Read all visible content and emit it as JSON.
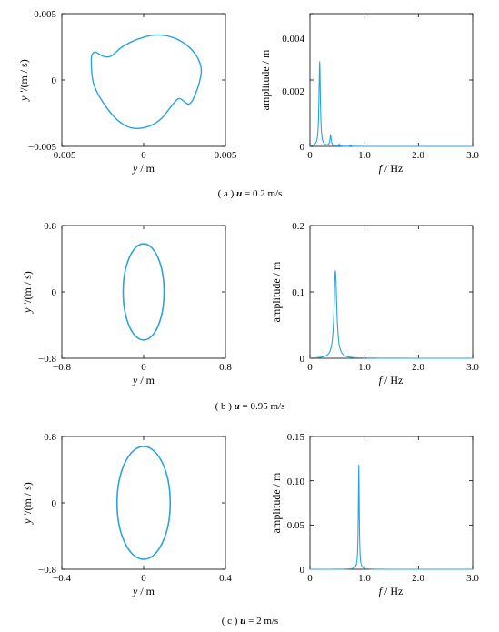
{
  "chart_data": [
    {
      "id": "a-phase",
      "type": "line",
      "xlabel": {
        "var": "y",
        "unit": "/ m"
      },
      "ylabel": {
        "var": "y ′",
        "unit": "/(m / s)"
      },
      "xlim": [
        -0.005,
        0.005
      ],
      "ylim": [
        -0.005,
        0.005
      ],
      "x_ticks": [
        "−0.005",
        "0",
        "0.005"
      ],
      "y_ticks": [
        "0.005",
        "0",
        "−0.005"
      ],
      "series": [
        {
          "x": [
            -0.0013,
            -0.0003,
            0.0008,
            0.002,
            0.003,
            0.0035,
            0.0034,
            0.003,
            0.0027,
            0.0022,
            0.0018,
            0.001,
            0.0,
            -0.001,
            -0.002,
            -0.003,
            -0.0032,
            -0.003,
            -0.0025,
            -0.002,
            -0.0013
          ],
          "y": [
            0.0025,
            0.0031,
            0.0034,
            0.0031,
            0.0022,
            0.001,
            -0.0002,
            -0.0015,
            -0.0018,
            -0.0014,
            -0.0018,
            -0.003,
            -0.0036,
            -0.0035,
            -0.0025,
            -0.0005,
            0.0015,
            0.0021,
            0.0018,
            0.0018,
            0.0025
          ]
        }
      ]
    },
    {
      "id": "a-spectrum",
      "type": "line",
      "xlabel": {
        "var": "f",
        "unit": "/ Hz"
      },
      "ylabel": {
        "var": "",
        "unit": "amplitude / m"
      },
      "xlim": [
        0,
        3.0
      ],
      "ylim": [
        0,
        0.005
      ],
      "x_ticks": [
        "0",
        "1.0",
        "2.0",
        "3.0"
      ],
      "y_ticks": [
        "0.004",
        "0.002",
        "0"
      ],
      "peaks": [
        {
          "f": 0.18,
          "amp": 0.0032,
          "width": 0.015
        },
        {
          "f": 0.38,
          "amp": 0.0004,
          "width": 0.015
        },
        {
          "f": 0.54,
          "amp": 8e-05,
          "width": 0.01
        },
        {
          "f": 0.75,
          "amp": 4e-05,
          "width": 0.01
        }
      ]
    },
    {
      "id": "b-phase",
      "type": "line",
      "xlabel": {
        "var": "y",
        "unit": "/ m"
      },
      "ylabel": {
        "var": "y ′",
        "unit": "/(m / s)"
      },
      "xlim": [
        -0.8,
        0.8
      ],
      "ylim": [
        -0.8,
        0.8
      ],
      "x_ticks": [
        "−0.8",
        "0",
        "0.8"
      ],
      "y_ticks": [
        "0.8",
        "0",
        "−0.8"
      ],
      "ellipse": {
        "cx": 0.0,
        "cy": 0.0,
        "rx": 0.2,
        "ry": 0.58
      }
    },
    {
      "id": "b-spectrum",
      "type": "line",
      "xlabel": {
        "var": "f",
        "unit": "/ Hz"
      },
      "ylabel": {
        "var": "",
        "unit": "amplitude / m"
      },
      "xlim": [
        0,
        3.0
      ],
      "ylim": [
        0,
        0.2
      ],
      "x_ticks": [
        "0",
        "1.0",
        "2.0",
        "3.0"
      ],
      "y_ticks": [
        "0.2",
        "0.1",
        "0"
      ],
      "peaks": [
        {
          "f": 0.47,
          "amp": 0.132,
          "width": 0.03
        }
      ]
    },
    {
      "id": "c-phase",
      "type": "line",
      "xlabel": {
        "var": "y",
        "unit": "/ m"
      },
      "ylabel": {
        "var": "y ′",
        "unit": "/(m / s)"
      },
      "xlim": [
        -0.4,
        0.4
      ],
      "ylim": [
        -0.8,
        0.8
      ],
      "x_ticks": [
        "−0.4",
        "0",
        "0.4"
      ],
      "y_ticks": [
        "0.8",
        "0",
        "−0.8"
      ],
      "ellipse": {
        "cx": 0.0,
        "cy": 0.0,
        "rx": 0.13,
        "ry": 0.68
      }
    },
    {
      "id": "c-spectrum",
      "type": "line",
      "xlabel": {
        "var": "f",
        "unit": "/ Hz"
      },
      "ylabel": {
        "var": "",
        "unit": "amplitude / m"
      },
      "xlim": [
        0,
        3.0
      ],
      "ylim": [
        0,
        0.15
      ],
      "x_ticks": [
        "0",
        "1.0",
        "2.0",
        "3.0"
      ],
      "y_ticks": [
        "0.15",
        "0.10",
        "0.05",
        "0"
      ],
      "peaks": [
        {
          "f": 0.9,
          "amp": 0.118,
          "width": 0.01
        }
      ]
    }
  ],
  "captions": {
    "a": {
      "prefix": "( a )",
      "var": "u",
      "value": "= 0.2 m/s"
    },
    "b": {
      "prefix": "( b )",
      "var": "u",
      "value": "= 0.95 m/s"
    },
    "c": {
      "prefix": "( c )",
      "var": "u",
      "value": "= 2 m/s"
    }
  },
  "colors": {
    "curve": "#29a3e0",
    "axis": "#000000"
  }
}
